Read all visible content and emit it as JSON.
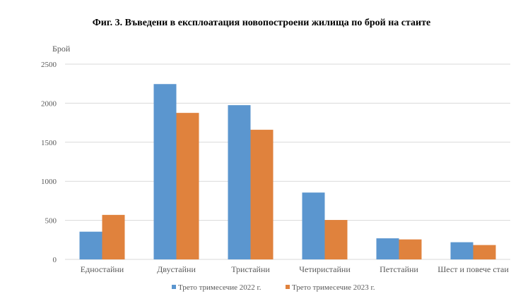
{
  "chart_data": {
    "type": "bar",
    "title": "Фиг. 3. Въведени в експлоатация новопостроени жилища по брой на стаите",
    "ylabel": "Брой",
    "xlabel": "",
    "ylim": [
      0,
      2500
    ],
    "yticks": [
      0,
      500,
      1000,
      1500,
      2000,
      2500
    ],
    "grid": true,
    "legend_position": "bottom",
    "categories": [
      "Едностайни",
      "Двустайни",
      "Тристайни",
      "Четиристайни",
      "Петстайни",
      "Шест и повече стаи"
    ],
    "series": [
      {
        "name": "Трето тримесечие 2022  г.",
        "color": "#5b96cf",
        "values": [
          355,
          2245,
          1975,
          856,
          270,
          220
        ]
      },
      {
        "name": "Трето тримесечие 2023  г.",
        "color": "#e0823d",
        "values": [
          570,
          1876,
          1660,
          505,
          256,
          184
        ]
      }
    ]
  }
}
